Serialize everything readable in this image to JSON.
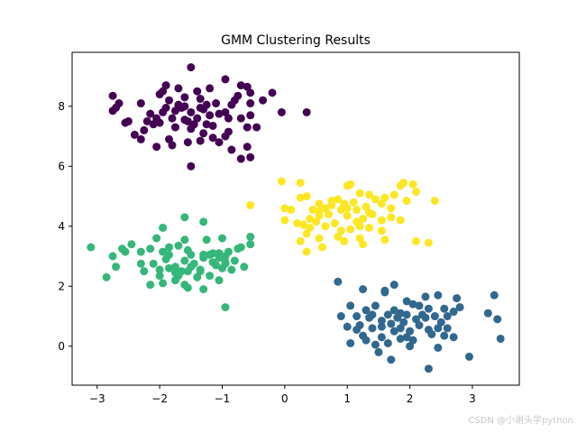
{
  "chart_data": {
    "type": "scatter",
    "title": "GMM Clustering Results",
    "xlabel": "",
    "ylabel": "",
    "xlim": [
      -3.4,
      3.75
    ],
    "ylim": [
      -1.3,
      9.8
    ],
    "xticks": [
      -3,
      -2,
      -1,
      0,
      1,
      2,
      3
    ],
    "yticks": [
      0,
      2,
      4,
      6,
      8
    ],
    "grid": false,
    "legend": "none",
    "series": [
      {
        "color": "#440154",
        "points": [
          [
            -1.5,
            9.3
          ],
          [
            -1.9,
            8.7
          ],
          [
            -1.7,
            8.6
          ],
          [
            -1.4,
            8.5
          ],
          [
            -1.2,
            8.6
          ],
          [
            -0.95,
            8.9
          ],
          [
            -0.7,
            8.7
          ],
          [
            -0.6,
            8.65
          ],
          [
            -0.2,
            8.45
          ],
          [
            -2.75,
            8.35
          ],
          [
            -2.65,
            8.1
          ],
          [
            -2.3,
            8.1
          ],
          [
            -2.0,
            8.4
          ],
          [
            -1.85,
            8.2
          ],
          [
            -1.6,
            8.3
          ],
          [
            -1.35,
            8.25
          ],
          [
            -1.1,
            8.1
          ],
          [
            -0.75,
            8.35
          ],
          [
            -0.55,
            8.45
          ],
          [
            -0.35,
            8.2
          ],
          [
            -2.75,
            7.85
          ],
          [
            -2.5,
            7.5
          ],
          [
            -2.2,
            7.5
          ],
          [
            -2.05,
            7.6
          ],
          [
            -1.95,
            7.8
          ],
          [
            -1.8,
            7.6
          ],
          [
            -1.65,
            7.95
          ],
          [
            -1.5,
            7.8
          ],
          [
            -1.4,
            7.6
          ],
          [
            -1.3,
            7.9
          ],
          [
            -1.2,
            7.7
          ],
          [
            -1.05,
            7.75
          ],
          [
            -0.9,
            7.6
          ],
          [
            -0.7,
            7.6
          ],
          [
            -0.55,
            7.7
          ],
          [
            -0.05,
            7.8
          ],
          [
            0.35,
            7.8
          ],
          [
            -2.7,
            7.95
          ],
          [
            -2.55,
            7.45
          ],
          [
            -2.25,
            7.2
          ],
          [
            -2.0,
            7.45
          ],
          [
            -1.75,
            7.3
          ],
          [
            -1.6,
            7.55
          ],
          [
            -1.45,
            7.4
          ],
          [
            -1.3,
            7.1
          ],
          [
            -1.15,
            7.35
          ],
          [
            -0.9,
            7.15
          ],
          [
            -0.6,
            7.3
          ],
          [
            -0.45,
            7.3
          ],
          [
            -2.3,
            6.9
          ],
          [
            -2.05,
            6.65
          ],
          [
            -1.85,
            6.9
          ],
          [
            -1.55,
            6.8
          ],
          [
            -1.35,
            6.85
          ],
          [
            -1.05,
            6.8
          ],
          [
            -0.85,
            6.55
          ],
          [
            -0.6,
            6.65
          ],
          [
            -0.7,
            6.25
          ],
          [
            -0.55,
            6.3
          ],
          [
            -1.5,
            6.0
          ],
          [
            -1.9,
            7.95
          ],
          [
            -1.7,
            8.05
          ],
          [
            -2.1,
            7.4
          ],
          [
            -0.85,
            8.05
          ],
          [
            -1.25,
            7.4
          ],
          [
            -1.5,
            7.25
          ],
          [
            -2.4,
            7.05
          ],
          [
            -1.8,
            6.7
          ],
          [
            -1.15,
            6.95
          ],
          [
            -0.95,
            7.0
          ],
          [
            -1.6,
            8.0
          ],
          [
            -1.35,
            7.95
          ],
          [
            -0.95,
            7.8
          ],
          [
            -1.75,
            7.85
          ],
          [
            -2.15,
            7.75
          ],
          [
            -0.55,
            8.1
          ],
          [
            -1.55,
            7.5
          ],
          [
            -0.8,
            8.2
          ],
          [
            -1.95,
            8.5
          ],
          [
            -1.25,
            8.05
          ]
        ]
      },
      {
        "color": "#31688e",
        "points": [
          [
            0.85,
            2.15
          ],
          [
            1.25,
            1.9
          ],
          [
            1.6,
            1.8
          ],
          [
            1.75,
            2.05
          ],
          [
            2.25,
            1.65
          ],
          [
            2.45,
            1.7
          ],
          [
            2.75,
            1.6
          ],
          [
            3.35,
            1.7
          ],
          [
            1.05,
            1.35
          ],
          [
            1.3,
            1.2
          ],
          [
            1.45,
            1.35
          ],
          [
            1.75,
            1.2
          ],
          [
            1.85,
            1.1
          ],
          [
            1.95,
            1.5
          ],
          [
            2.05,
            1.4
          ],
          [
            2.15,
            1.35
          ],
          [
            2.3,
            1.25
          ],
          [
            2.55,
            1.25
          ],
          [
            2.8,
            1.3
          ],
          [
            0.9,
            1.0
          ],
          [
            1.15,
            1.0
          ],
          [
            1.35,
            0.95
          ],
          [
            1.55,
            0.85
          ],
          [
            1.65,
            1.05
          ],
          [
            1.8,
            0.95
          ],
          [
            1.95,
            1.05
          ],
          [
            2.1,
            0.9
          ],
          [
            2.25,
            0.95
          ],
          [
            2.4,
            1.0
          ],
          [
            2.6,
            1.0
          ],
          [
            2.7,
            1.15
          ],
          [
            3.25,
            1.1
          ],
          [
            3.4,
            0.9
          ],
          [
            1.0,
            0.65
          ],
          [
            1.2,
            0.7
          ],
          [
            1.4,
            0.6
          ],
          [
            1.55,
            0.65
          ],
          [
            1.7,
            0.75
          ],
          [
            1.85,
            0.6
          ],
          [
            2.0,
            0.5
          ],
          [
            2.15,
            0.7
          ],
          [
            2.3,
            0.55
          ],
          [
            2.45,
            0.6
          ],
          [
            2.6,
            0.6
          ],
          [
            1.05,
            0.1
          ],
          [
            1.3,
            0.2
          ],
          [
            1.45,
            0.05
          ],
          [
            1.65,
            0.1
          ],
          [
            1.85,
            0.25
          ],
          [
            1.95,
            0.3
          ],
          [
            2.05,
            0.2
          ],
          [
            2.45,
            -0.05
          ],
          [
            3.45,
            0.25
          ],
          [
            1.5,
            -0.2
          ],
          [
            1.7,
            -0.45
          ],
          [
            2.3,
            -0.75
          ],
          [
            2.95,
            -0.35
          ],
          [
            1.6,
            1.85
          ],
          [
            1.9,
            0.8
          ],
          [
            2.5,
            0.8
          ],
          [
            1.25,
            0.35
          ],
          [
            2.7,
            0.3
          ],
          [
            1.75,
            0.5
          ],
          [
            2.2,
            1.05
          ],
          [
            1.4,
            1.05
          ],
          [
            2.0,
            0.0
          ],
          [
            1.55,
            0.3
          ],
          [
            2.35,
            0.4
          ],
          [
            1.15,
            0.55
          ],
          [
            2.55,
            0.35
          ]
        ]
      },
      {
        "color": "#35b779",
        "points": [
          [
            -1.6,
            4.3
          ],
          [
            -1.3,
            4.15
          ],
          [
            -1.95,
            3.95
          ],
          [
            -2.05,
            3.6
          ],
          [
            -1.6,
            3.55
          ],
          [
            -1.25,
            3.55
          ],
          [
            -1.0,
            3.6
          ],
          [
            -0.55,
            3.65
          ],
          [
            -0.55,
            3.4
          ],
          [
            -0.7,
            3.3
          ],
          [
            -3.1,
            3.3
          ],
          [
            -2.6,
            3.25
          ],
          [
            -2.55,
            3.15
          ],
          [
            -2.15,
            3.25
          ],
          [
            -1.95,
            3.15
          ],
          [
            -1.85,
            3.3
          ],
          [
            -1.7,
            3.35
          ],
          [
            -1.55,
            3.2
          ],
          [
            -1.3,
            3.05
          ],
          [
            -1.15,
            3.1
          ],
          [
            -1.05,
            3.1
          ],
          [
            -0.95,
            3.0
          ],
          [
            -0.75,
            3.25
          ],
          [
            -2.75,
            3.0
          ],
          [
            -2.3,
            2.75
          ],
          [
            -2.1,
            2.75
          ],
          [
            -1.9,
            2.9
          ],
          [
            -1.75,
            2.65
          ],
          [
            -1.6,
            2.85
          ],
          [
            -1.45,
            2.75
          ],
          [
            -1.3,
            2.95
          ],
          [
            -1.15,
            2.8
          ],
          [
            -1.05,
            2.95
          ],
          [
            -0.95,
            2.8
          ],
          [
            -0.8,
            2.85
          ],
          [
            -2.7,
            2.65
          ],
          [
            -2.25,
            2.5
          ],
          [
            -2.0,
            2.35
          ],
          [
            -1.85,
            2.6
          ],
          [
            -1.7,
            2.35
          ],
          [
            -1.55,
            2.5
          ],
          [
            -1.35,
            2.5
          ],
          [
            -1.2,
            2.35
          ],
          [
            -1.0,
            2.6
          ],
          [
            -0.85,
            2.55
          ],
          [
            -0.65,
            2.65
          ],
          [
            -2.85,
            2.3
          ],
          [
            -2.15,
            2.05
          ],
          [
            -1.95,
            2.1
          ],
          [
            -1.75,
            2.2
          ],
          [
            -1.6,
            2.05
          ],
          [
            -1.4,
            2.3
          ],
          [
            -1.05,
            2.2
          ],
          [
            -1.55,
            1.95
          ],
          [
            -1.3,
            1.9
          ],
          [
            -0.95,
            1.3
          ],
          [
            -1.75,
            2.45
          ],
          [
            -2.3,
            3.15
          ],
          [
            -1.5,
            3.05
          ],
          [
            -1.1,
            2.7
          ],
          [
            -1.65,
            2.5
          ],
          [
            -1.85,
            3.05
          ],
          [
            -1.2,
            3.05
          ],
          [
            -2.45,
            3.4
          ],
          [
            -0.9,
            3.15
          ],
          [
            -1.35,
            2.55
          ],
          [
            -2.0,
            2.55
          ],
          [
            -0.95,
            2.75
          ],
          [
            -1.5,
            2.65
          ]
        ]
      },
      {
        "color": "#fde725",
        "points": [
          [
            -0.55,
            4.7
          ],
          [
            -0.05,
            5.5
          ],
          [
            0.25,
            5.45
          ],
          [
            1.0,
            5.35
          ],
          [
            1.05,
            5.4
          ],
          [
            1.85,
            5.35
          ],
          [
            1.9,
            5.45
          ],
          [
            2.05,
            5.4
          ],
          [
            1.75,
            5.05
          ],
          [
            2.1,
            5.15
          ],
          [
            2.4,
            4.85
          ],
          [
            0.25,
            4.95
          ],
          [
            0.35,
            5.0
          ],
          [
            0.55,
            4.75
          ],
          [
            0.75,
            4.7
          ],
          [
            0.85,
            4.9
          ],
          [
            1.1,
            4.8
          ],
          [
            1.2,
            5.1
          ],
          [
            1.35,
            5.05
          ],
          [
            1.45,
            4.9
          ],
          [
            1.55,
            4.75
          ],
          [
            1.95,
            4.85
          ],
          [
            0.0,
            4.6
          ],
          [
            0.1,
            4.55
          ],
          [
            0.45,
            4.55
          ],
          [
            0.55,
            4.35
          ],
          [
            0.7,
            4.4
          ],
          [
            0.9,
            4.55
          ],
          [
            1.0,
            4.35
          ],
          [
            1.15,
            4.55
          ],
          [
            1.3,
            4.65
          ],
          [
            1.4,
            4.4
          ],
          [
            1.55,
            4.2
          ],
          [
            1.7,
            4.3
          ],
          [
            1.85,
            4.2
          ],
          [
            0.0,
            4.2
          ],
          [
            0.3,
            4.05
          ],
          [
            0.4,
            4.25
          ],
          [
            0.5,
            4.15
          ],
          [
            0.65,
            4.0
          ],
          [
            0.8,
            4.1
          ],
          [
            0.9,
            3.85
          ],
          [
            1.05,
            3.9
          ],
          [
            1.2,
            4.0
          ],
          [
            1.35,
            3.95
          ],
          [
            1.55,
            3.85
          ],
          [
            1.6,
            3.55
          ],
          [
            0.35,
            3.75
          ],
          [
            0.55,
            3.6
          ],
          [
            0.25,
            3.5
          ],
          [
            0.6,
            3.3
          ],
          [
            0.35,
            3.15
          ],
          [
            0.95,
            3.5
          ],
          [
            1.2,
            3.6
          ],
          [
            1.25,
            3.4
          ],
          [
            2.1,
            3.5
          ],
          [
            2.3,
            3.45
          ],
          [
            1.0,
            4.6
          ],
          [
            0.65,
            4.6
          ],
          [
            1.35,
            4.45
          ],
          [
            0.75,
            4.85
          ],
          [
            0.4,
            3.95
          ],
          [
            1.25,
            4.25
          ],
          [
            0.85,
            3.65
          ],
          [
            0.2,
            4.1
          ],
          [
            1.15,
            4.15
          ],
          [
            0.95,
            4.75
          ],
          [
            1.6,
            4.95
          ],
          [
            0.55,
            4.5
          ],
          [
            1.7,
            4.6
          ]
        ]
      }
    ]
  },
  "watermark": "CSDN @小谢头学python"
}
